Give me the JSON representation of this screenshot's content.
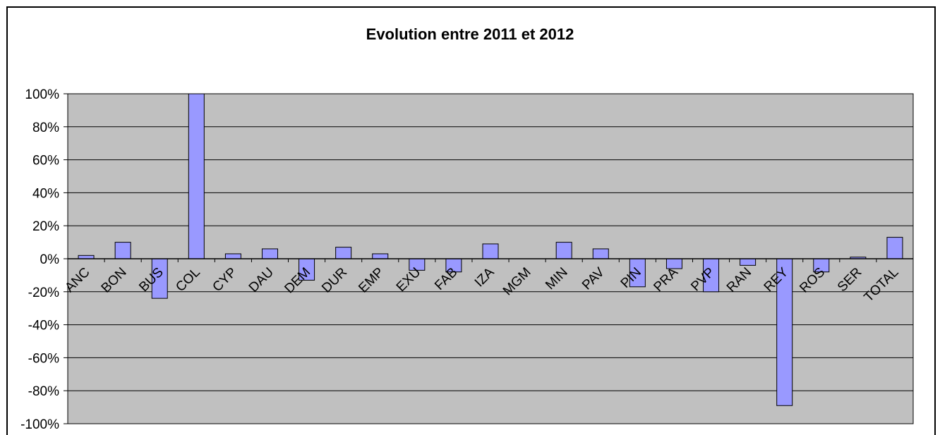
{
  "chart_data": {
    "type": "bar",
    "title": "Evolution entre 2011 et 2012",
    "xlabel": "",
    "ylabel": "",
    "categories": [
      "ANC",
      "BON",
      "BUS",
      "COL",
      "CYP",
      "DAU",
      "DEM",
      "DUR",
      "EMP",
      "EXU",
      "FAB",
      "IZA",
      "MGM",
      "MIN",
      "PAV",
      "PIN",
      "PRA",
      "PVP",
      "RAN",
      "REY",
      "ROS",
      "SER",
      "TOTAL"
    ],
    "values": [
      0.02,
      0.1,
      -0.24,
      1.02,
      0.03,
      0.06,
      -0.13,
      0.07,
      0.03,
      -0.07,
      -0.08,
      0.09,
      0.0,
      0.1,
      0.06,
      -0.17,
      -0.06,
      -0.2,
      -0.04,
      -0.89,
      -0.08,
      0.01,
      0.13
    ],
    "yticks": [
      "100%",
      "80%",
      "60%",
      "40%",
      "20%",
      "0%",
      "-20%",
      "-40%",
      "-60%",
      "-80%",
      "-100%"
    ],
    "ylim": [
      -1.0,
      1.0
    ],
    "grid": true,
    "legend": "none",
    "colors": {
      "bar": "#9999ff",
      "plot_bg": "#c0c0c0",
      "grid": "#000000"
    }
  }
}
